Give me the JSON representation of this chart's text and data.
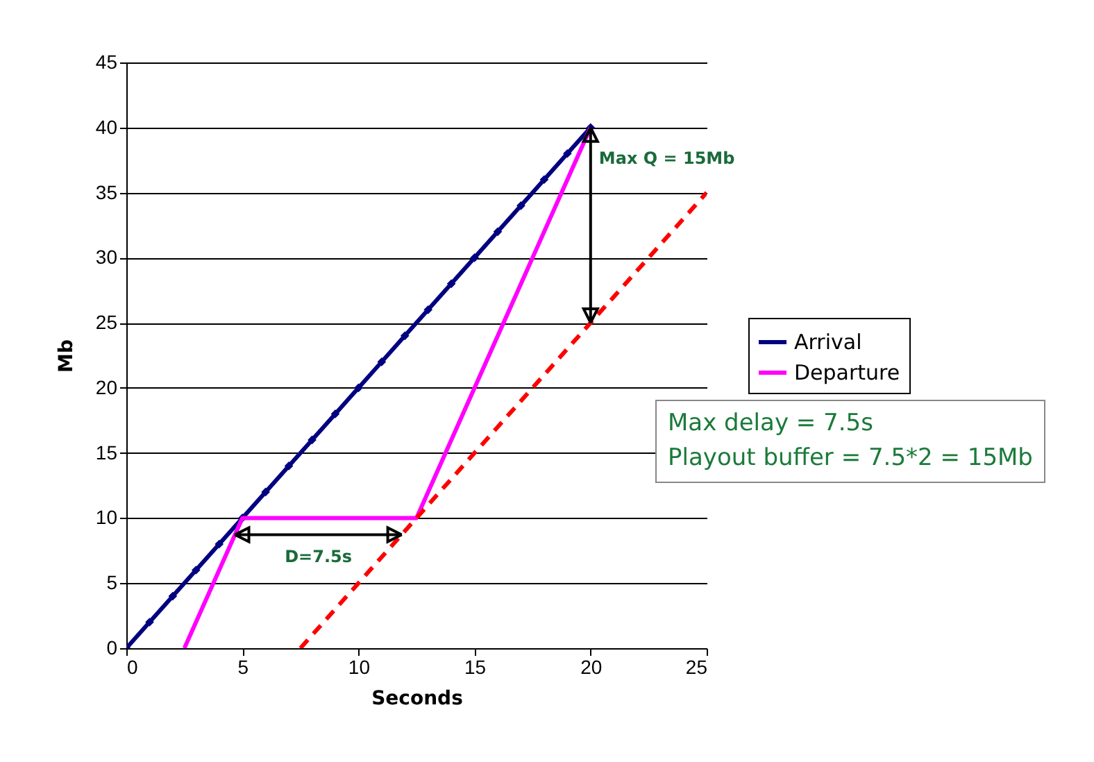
{
  "chart_data": {
    "type": "line",
    "xlabel": "Seconds",
    "ylabel": "Mb",
    "xlim": [
      0,
      25
    ],
    "xticks": [
      0,
      5,
      10,
      15,
      20,
      25
    ],
    "ylim": [
      0,
      45
    ],
    "yticks": [
      0,
      5,
      10,
      15,
      20,
      25,
      30,
      35,
      40,
      45
    ],
    "grid": "y",
    "legend": "right",
    "series": [
      {
        "name": "Arrival",
        "color": "#000080",
        "marker": "diamond",
        "x": [
          0,
          1,
          2,
          3,
          4,
          5,
          6,
          7,
          8,
          9,
          10,
          11,
          12,
          13,
          14,
          15,
          16,
          17,
          18,
          19,
          20
        ],
        "values": [
          0,
          2,
          4,
          6,
          8,
          10,
          12,
          14,
          16,
          18,
          20,
          22,
          24,
          26,
          28,
          30,
          32,
          34,
          36,
          38,
          40
        ]
      },
      {
        "name": "Departure",
        "color": "#ff00ff",
        "x": [
          2.5,
          5,
          12.5,
          20
        ],
        "values": [
          0,
          10,
          10,
          40
        ]
      },
      {
        "type": "line",
        "color": "#ff0000",
        "line_style": "dashed",
        "x": [
          7.5,
          25
        ],
        "values": [
          0,
          35
        ]
      }
    ],
    "annotations": [
      "Max Q = 15Mb",
      "D=7.5s",
      "Max delay = 7.5s\nPlayout buffer = 7.5*2 = 15Mb"
    ]
  }
}
